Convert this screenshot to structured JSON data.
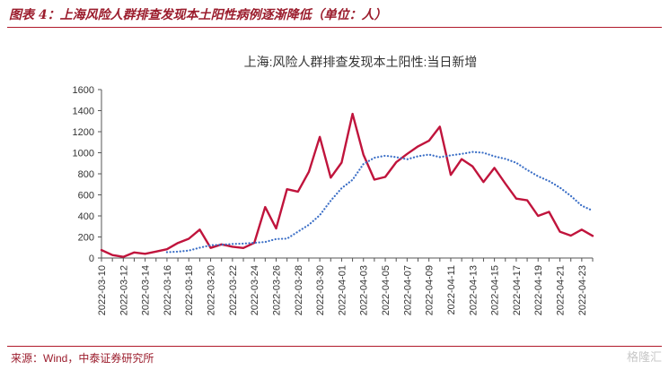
{
  "figure_title": "图表 4：上海风险人群排查发现本土阳性病例逐渐降低（单位：人）",
  "source": "来源：Wind，中泰证券研究所",
  "watermark": "格隆汇",
  "colors": {
    "accent": "#9b1c2c",
    "series_main": "#c0143c",
    "series_ma": "#3a6ec6"
  },
  "chart_data": {
    "type": "line",
    "title": "上海:风险人群排查发现本土阳性:当日新增",
    "xlabel": "",
    "ylabel": "",
    "ylim": [
      0,
      1600
    ],
    "yticks": [
      0,
      200,
      400,
      600,
      800,
      1000,
      1200,
      1400,
      1600
    ],
    "grid": false,
    "legend": "none",
    "x": [
      "2022-03-10",
      "2022-03-11",
      "2022-03-12",
      "2022-03-13",
      "2022-03-14",
      "2022-03-15",
      "2022-03-16",
      "2022-03-17",
      "2022-03-18",
      "2022-03-19",
      "2022-03-20",
      "2022-03-21",
      "2022-03-22",
      "2022-03-23",
      "2022-03-24",
      "2022-03-25",
      "2022-03-26",
      "2022-03-27",
      "2022-03-28",
      "2022-03-29",
      "2022-03-30",
      "2022-03-31",
      "2022-04-01",
      "2022-04-02",
      "2022-04-03",
      "2022-04-04",
      "2022-04-05",
      "2022-04-06",
      "2022-04-07",
      "2022-04-08",
      "2022-04-09",
      "2022-04-10",
      "2022-04-11",
      "2022-04-12",
      "2022-04-13",
      "2022-04-14",
      "2022-04-15",
      "2022-04-16",
      "2022-04-17",
      "2022-04-18",
      "2022-04-19",
      "2022-04-20",
      "2022-04-21",
      "2022-04-22",
      "2022-04-23",
      "2022-04-24"
    ],
    "xticks": [
      "2022-03-10",
      "2022-03-12",
      "2022-03-14",
      "2022-03-16",
      "2022-03-18",
      "2022-03-20",
      "2022-03-22",
      "2022-03-24",
      "2022-03-26",
      "2022-03-28",
      "2022-03-30",
      "2022-04-01",
      "2022-04-03",
      "2022-04-05",
      "2022-04-07",
      "2022-04-09",
      "2022-04-11",
      "2022-04-13",
      "2022-04-15",
      "2022-04-17",
      "2022-04-19",
      "2022-04-21",
      "2022-04-23"
    ],
    "series": [
      {
        "style": "solid",
        "values": [
          76,
          28,
          11,
          53,
          40,
          61,
          83,
          143,
          183,
          270,
          96,
          129,
          107,
          95,
          144,
          484,
          281,
          654,
          631,
          820,
          1151,
          763,
          906,
          1369,
          982,
          745,
          770,
          910,
          989,
          1060,
          1114,
          1248,
          790,
          940,
          870,
          722,
          856,
          706,
          564,
          548,
          400,
          438,
          250,
          213,
          270,
          210
        ]
      },
      {
        "style": "dotted",
        "values": [
          null,
          null,
          null,
          null,
          null,
          null,
          55,
          60,
          71,
          98,
          122,
          126,
          134,
          137,
          145,
          152,
          180,
          184,
          250,
          316,
          407,
          545,
          663,
          743,
          893,
          952,
          972,
          958,
          938,
          967,
          983,
          958,
          975,
          989,
          1008,
          1000,
          966,
          942,
          905,
          837,
          776,
          731,
          669,
          590,
          497,
          450
        ]
      }
    ]
  }
}
